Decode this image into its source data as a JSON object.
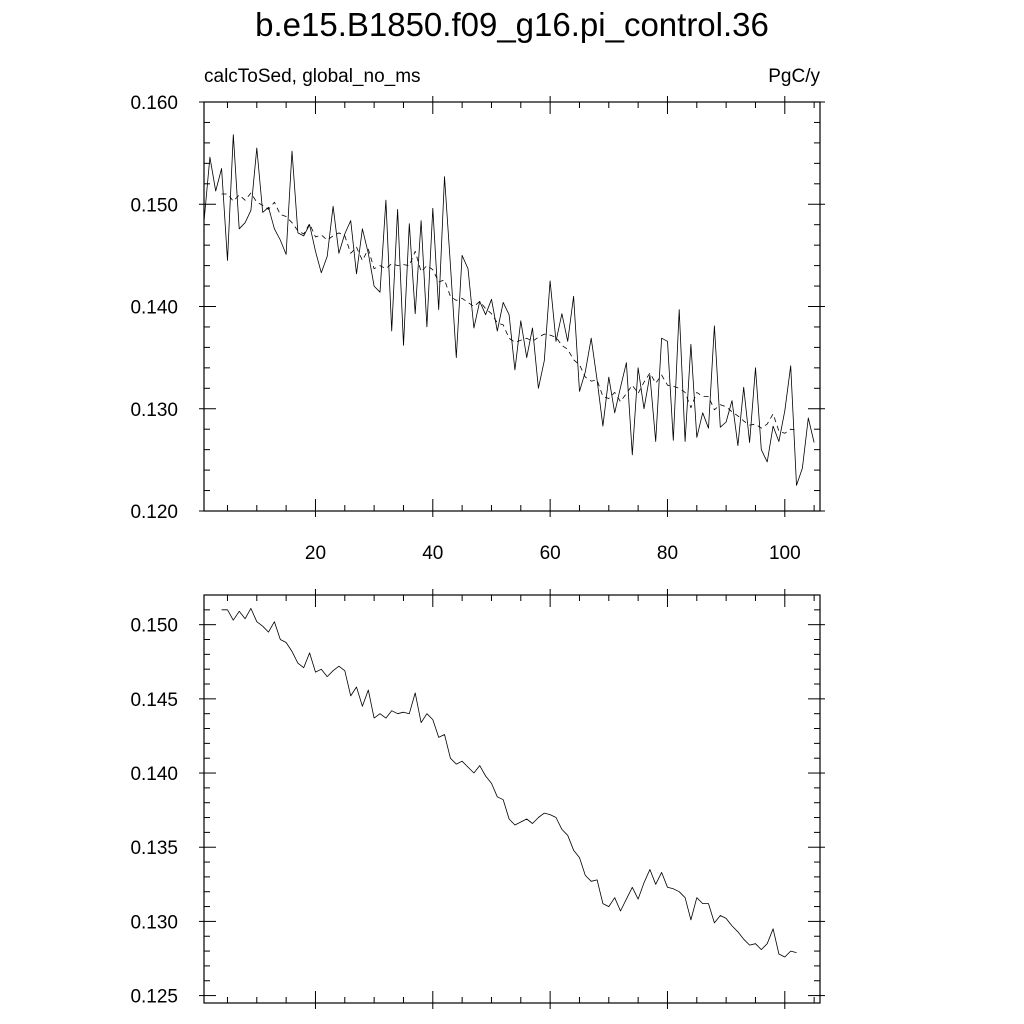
{
  "title": "b.e15.B1850.f09_g16.pi_control.36",
  "chart_data": [
    {
      "type": "line",
      "left_label": "calcToSed, global_no_ms",
      "right_label": "PgC/y",
      "xlim": [
        1,
        106
      ],
      "ylim": [
        0.12,
        0.16
      ],
      "x_ticks": [
        20,
        40,
        60,
        80,
        100
      ],
      "x_tick_labels": [
        "20",
        "40",
        "60",
        "80",
        "100"
      ],
      "y_ticks": [
        0.12,
        0.13,
        0.14,
        0.15,
        0.16
      ],
      "y_tick_labels": [
        "0.120",
        "0.130",
        "0.140",
        "0.150",
        "0.160"
      ],
      "series": [
        {
          "style": "solid",
          "x_start": 1,
          "values": [
            0.1483,
            0.1546,
            0.1513,
            0.1535,
            0.1445,
            0.1568,
            0.1476,
            0.1482,
            0.1494,
            0.1555,
            0.1492,
            0.1497,
            0.1476,
            0.1465,
            0.1451,
            0.1552,
            0.1472,
            0.1469,
            0.148,
            0.1454,
            0.1433,
            0.1449,
            0.1498,
            0.1452,
            0.1471,
            0.1484,
            0.1432,
            0.1476,
            0.1452,
            0.142,
            0.1414,
            0.1504,
            0.1376,
            0.1495,
            0.1362,
            0.1481,
            0.1393,
            0.1484,
            0.138,
            0.1496,
            0.1397,
            0.1527,
            0.1441,
            0.135,
            0.145,
            0.1437,
            0.1379,
            0.1405,
            0.1392,
            0.1407,
            0.1376,
            0.1404,
            0.1392,
            0.1338,
            0.1386,
            0.135,
            0.1379,
            0.132,
            0.1347,
            0.1425,
            0.1366,
            0.1393,
            0.1366,
            0.141,
            0.1317,
            0.1336,
            0.1369,
            0.1328,
            0.1283,
            0.1331,
            0.1296,
            0.1321,
            0.1345,
            0.1255,
            0.134,
            0.13,
            0.1333,
            0.1268,
            0.1369,
            0.1366,
            0.1269,
            0.1397,
            0.1268,
            0.1363,
            0.1272,
            0.1296,
            0.1281,
            0.1381,
            0.1282,
            0.1287,
            0.1308,
            0.1264,
            0.1321,
            0.1267,
            0.134,
            0.126,
            0.1248,
            0.1283,
            0.1268,
            0.1298,
            0.1342,
            0.1225,
            0.1242,
            0.1291,
            0.1267
          ]
        },
        {
          "style": "dashed",
          "x_start": 4,
          "values": [
            0.151,
            0.151,
            0.1503,
            0.1509,
            0.1504,
            0.1511,
            0.1502,
            0.1499,
            0.1495,
            0.1502,
            0.149,
            0.1488,
            0.1482,
            0.1474,
            0.1471,
            0.1481,
            0.1468,
            0.147,
            0.1465,
            0.1469,
            0.1472,
            0.1469,
            0.1452,
            0.1458,
            0.1445,
            0.1456,
            0.1437,
            0.144,
            0.1437,
            0.1442,
            0.144,
            0.1441,
            0.144,
            0.1454,
            0.1434,
            0.144,
            0.1436,
            0.1424,
            0.1426,
            0.141,
            0.1406,
            0.1408,
            0.1404,
            0.14,
            0.1405,
            0.1398,
            0.1393,
            0.1384,
            0.1382,
            0.1369,
            0.1365,
            0.1367,
            0.1369,
            0.1366,
            0.137,
            0.1373,
            0.1372,
            0.137,
            0.1362,
            0.1358,
            0.1348,
            0.1343,
            0.1331,
            0.1327,
            0.1328,
            0.1312,
            0.131,
            0.1316,
            0.1307,
            0.1315,
            0.1323,
            0.1315,
            0.1326,
            0.1335,
            0.1325,
            0.1333,
            0.1323,
            0.1322,
            0.132,
            0.1316,
            0.1301,
            0.1316,
            0.1312,
            0.1312,
            0.1299,
            0.1304,
            0.1302,
            0.1297,
            0.1293,
            0.1288,
            0.1284,
            0.1285,
            0.1281,
            0.1285,
            0.1295,
            0.1278,
            0.1276,
            0.128,
            0.1279
          ]
        }
      ]
    },
    {
      "type": "line",
      "xlim": [
        1,
        106
      ],
      "ylim": [
        0.1245,
        0.152
      ],
      "x_ticks": [
        20,
        40,
        60,
        80,
        100
      ],
      "y_ticks": [
        0.125,
        0.13,
        0.135,
        0.14,
        0.145,
        0.15
      ],
      "y_tick_labels": [
        "0.125",
        "0.130",
        "0.135",
        "0.140",
        "0.145",
        "0.150"
      ],
      "series": [
        {
          "style": "solid",
          "x_start": 4,
          "values": [
            0.151,
            0.151,
            0.1503,
            0.1509,
            0.1504,
            0.1511,
            0.1502,
            0.1499,
            0.1495,
            0.1502,
            0.149,
            0.1488,
            0.1482,
            0.1474,
            0.1471,
            0.1481,
            0.1468,
            0.147,
            0.1465,
            0.1469,
            0.1472,
            0.1469,
            0.1452,
            0.1458,
            0.1445,
            0.1456,
            0.1437,
            0.144,
            0.1437,
            0.1442,
            0.144,
            0.1441,
            0.144,
            0.1454,
            0.1434,
            0.144,
            0.1436,
            0.1424,
            0.1426,
            0.141,
            0.1406,
            0.1408,
            0.1404,
            0.14,
            0.1405,
            0.1398,
            0.1393,
            0.1384,
            0.1382,
            0.1369,
            0.1365,
            0.1367,
            0.1369,
            0.1366,
            0.137,
            0.1373,
            0.1372,
            0.137,
            0.1362,
            0.1358,
            0.1348,
            0.1343,
            0.1331,
            0.1327,
            0.1328,
            0.1312,
            0.131,
            0.1316,
            0.1307,
            0.1315,
            0.1323,
            0.1315,
            0.1326,
            0.1335,
            0.1325,
            0.1333,
            0.1323,
            0.1322,
            0.132,
            0.1316,
            0.1301,
            0.1316,
            0.1312,
            0.1312,
            0.1299,
            0.1304,
            0.1302,
            0.1297,
            0.1293,
            0.1288,
            0.1284,
            0.1285,
            0.1281,
            0.1285,
            0.1295,
            0.1278,
            0.1276,
            0.128,
            0.1279
          ]
        }
      ]
    }
  ]
}
